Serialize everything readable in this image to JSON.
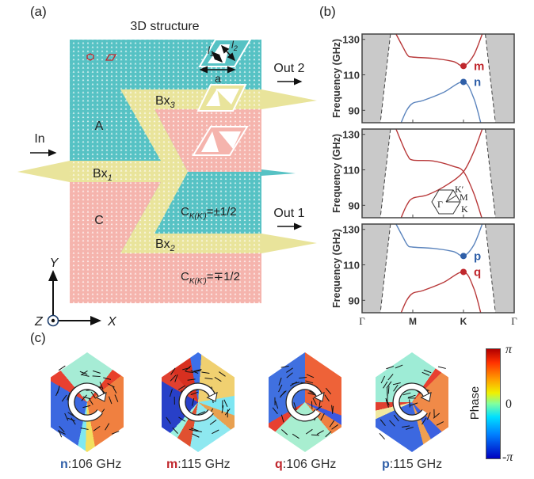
{
  "panel_a": {
    "label": "(a)",
    "title": "3D structure",
    "region_a": "A",
    "region_c": "C",
    "bx1": {
      "base": "Bx",
      "sub": "1"
    },
    "bx2": {
      "base": "Bx",
      "sub": "2"
    },
    "bx3": {
      "base": "Bx",
      "sub": "3"
    },
    "input": "In",
    "out1": "Out 1",
    "out2": "Out 2",
    "chern_upper": {
      "base": "C",
      "sub": "K(K')",
      "value": "=±1/2"
    },
    "chern_lower": {
      "base": "C",
      "sub": "K(K')",
      "value": "=∓1/2"
    },
    "lattice_a": "a",
    "l1": "l",
    "l1_sub": "1",
    "l2": "l",
    "l2_sub": "2",
    "axis_x": "X",
    "axis_y": "Y",
    "axis_z": "Z",
    "colors": {
      "A": "#56c2c4",
      "C": "#f5b4ad",
      "B": "#e9e49b"
    }
  },
  "panel_b": {
    "label": "(b)",
    "bz_labels": {
      "gamma": "Γ",
      "k": "K",
      "kp": "K′",
      "m": "M"
    }
  },
  "chart_data": [
    {
      "type": "line",
      "ylabel": "Frequency (GHz)",
      "ylim": [
        83,
        133
      ],
      "yticks": [
        90,
        110,
        130
      ],
      "xticks": [
        "Γ",
        "M",
        "K",
        "Γ"
      ],
      "light_cone": "gray shaded",
      "series": [
        {
          "color": "#b8393a",
          "points": [
            [
              0.67,
              133
            ],
            [
              0.8,
              126
            ],
            [
              0.9,
              121
            ],
            [
              1,
              120
            ],
            [
              1.4,
              119.3
            ],
            [
              1.8,
              117.5
            ],
            [
              2,
              115
            ],
            [
              2.2,
              121
            ],
            [
              2.37,
              133
            ]
          ]
        },
        {
          "color": "#5b84bd",
          "points": [
            [
              0.77,
              83
            ],
            [
              0.88,
              90
            ],
            [
              1,
              94
            ],
            [
              1.2,
              95.5
            ],
            [
              1.6,
              100
            ],
            [
              2,
              106
            ],
            [
              2.2,
              97
            ],
            [
              2.34,
              83
            ]
          ]
        }
      ],
      "markers": [
        {
          "label": "m",
          "k": 2,
          "f": 115,
          "color": "#c0272d"
        },
        {
          "label": "n",
          "k": 2,
          "f": 106,
          "color": "#2f5fa8"
        }
      ]
    },
    {
      "type": "line",
      "ylabel": "Frequency (GHz)",
      "ylim": [
        83,
        133
      ],
      "yticks": [
        90,
        110,
        130
      ],
      "xticks": [
        "Γ",
        "M",
        "K",
        "Γ"
      ],
      "series": [
        {
          "color": "#b8393a",
          "points": [
            [
              0.67,
              133
            ],
            [
              0.8,
              124
            ],
            [
              0.9,
              118
            ],
            [
              1,
              115.5
            ],
            [
              1.4,
              115
            ],
            [
              1.8,
              112
            ],
            [
              2,
              109
            ],
            [
              2.2,
              97
            ],
            [
              2.36,
              83
            ]
          ]
        },
        {
          "color": "#b8393a",
          "points": [
            [
              0.77,
              83
            ],
            [
              0.88,
              90
            ],
            [
              1,
              94
            ],
            [
              1.3,
              96
            ],
            [
              1.7,
              102
            ],
            [
              2,
              109
            ],
            [
              2.2,
              120
            ],
            [
              2.37,
              133
            ]
          ]
        }
      ],
      "markers": []
    },
    {
      "type": "line",
      "ylabel": "Frequency (GHz)",
      "ylim": [
        83,
        133
      ],
      "yticks": [
        90,
        110,
        130
      ],
      "xticks": [
        "Γ",
        "M",
        "K",
        "Γ"
      ],
      "series": [
        {
          "color": "#5b84bd",
          "points": [
            [
              0.67,
              133
            ],
            [
              0.8,
              126
            ],
            [
              0.9,
              121
            ],
            [
              1,
              120
            ],
            [
              1.4,
              119.3
            ],
            [
              1.8,
              117.5
            ],
            [
              2,
              115
            ],
            [
              2.2,
              121
            ],
            [
              2.37,
              133
            ]
          ]
        },
        {
          "color": "#b8393a",
          "points": [
            [
              0.77,
              83
            ],
            [
              0.88,
              90
            ],
            [
              1,
              94
            ],
            [
              1.2,
              95.5
            ],
            [
              1.6,
              100
            ],
            [
              2,
              106
            ],
            [
              2.2,
              97
            ],
            [
              2.34,
              83
            ]
          ]
        }
      ],
      "markers": [
        {
          "label": "p",
          "k": 2,
          "f": 115,
          "color": "#2f5fa8"
        },
        {
          "label": "q",
          "k": 2,
          "f": 106,
          "color": "#c0272d"
        }
      ]
    }
  ],
  "panel_c": {
    "label": "(c)",
    "modes": [
      {
        "letter": "n",
        "freq": ":106 GHz",
        "color": "#2f5fa8"
      },
      {
        "letter": "m",
        "freq": ":115 GHz",
        "color": "#c0272d"
      },
      {
        "letter": "q",
        "freq": ":106 GHz",
        "color": "#c0272d"
      },
      {
        "letter": "p",
        "freq": ":115 GHz",
        "color": "#2f5fa8"
      }
    ],
    "colorbar": {
      "title": "Phase",
      "max": "π",
      "mid": "0",
      "min": "-π"
    }
  }
}
